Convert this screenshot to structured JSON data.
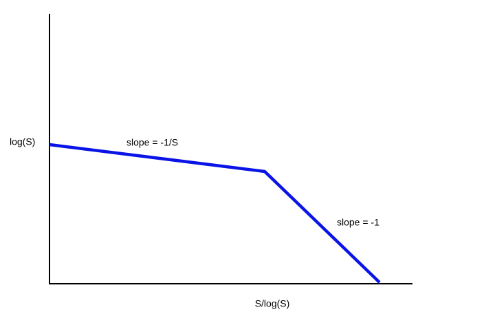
{
  "axes": {
    "y_label": "log(S)",
    "x_label": "S/log(S)"
  },
  "annotations": [
    "slope = -1/S",
    "slope = -1"
  ]
}
